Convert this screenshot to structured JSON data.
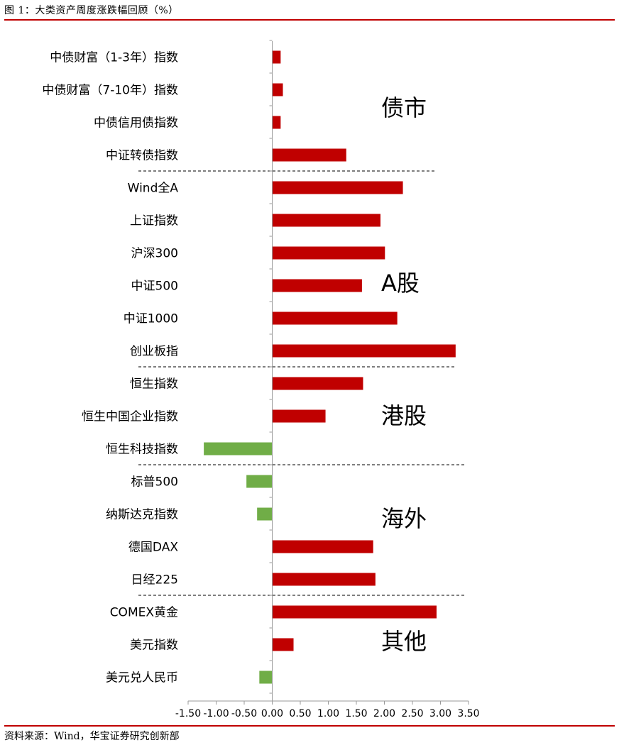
{
  "figure": {
    "title": "图 1：大类资产周度涨跌幅回顾（%）",
    "source": "资料来源：Wind，华宝证券研究创新部"
  },
  "colors": {
    "positive": "#c00000",
    "negative": "#70ad47",
    "rule": "#c00000",
    "divider": "#333333"
  },
  "chart_data": {
    "type": "bar",
    "orientation": "horizontal",
    "unit": "%",
    "categories": [
      "中债财富（1-3年）指数",
      "中债财富（7-10年）指数",
      "中债信用债指数",
      "中证转债指数",
      "Wind全A",
      "上证指数",
      "沪深300",
      "中证500",
      "中证1000",
      "创业板指",
      "恒生指数",
      "恒生中国企业指数",
      "恒生科技指数",
      "标普500",
      "纳斯达克指数",
      "德国DAX",
      "日经225",
      "COMEX黄金",
      "美元指数",
      "美元兑人民币"
    ],
    "values": [
      0.15,
      0.19,
      0.15,
      1.32,
      2.33,
      1.93,
      2.01,
      1.6,
      2.23,
      3.27,
      1.62,
      0.95,
      -1.22,
      -0.46,
      -0.27,
      1.8,
      1.84,
      2.93,
      0.38,
      -0.23
    ],
    "xlim": [
      -1.5,
      3.5
    ],
    "xticks": [
      "-1.50",
      "-1.00",
      "-0.50",
      "0.00",
      "0.50",
      "1.00",
      "1.50",
      "2.00",
      "2.50",
      "3.00",
      "3.50"
    ],
    "groups": [
      {
        "label": "债市",
        "start": 0,
        "end": 3
      },
      {
        "label": "A股",
        "start": 4,
        "end": 9
      },
      {
        "label": "港股",
        "start": 10,
        "end": 12
      },
      {
        "label": "海外",
        "start": 13,
        "end": 16
      },
      {
        "label": "其他",
        "start": 17,
        "end": 19
      }
    ],
    "grid": false,
    "legend": "none"
  }
}
